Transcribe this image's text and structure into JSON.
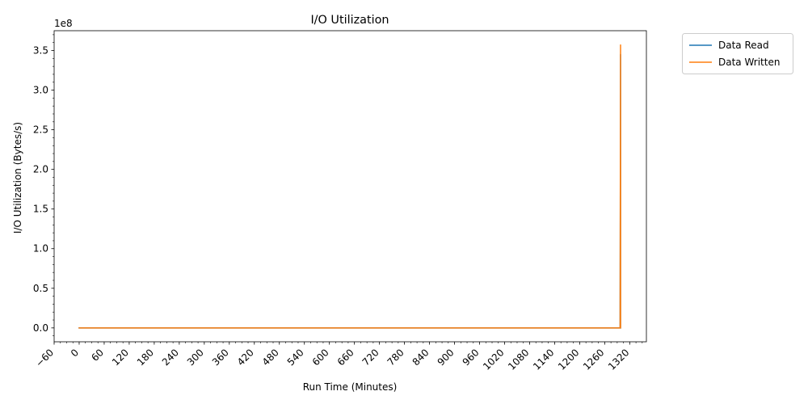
{
  "chart_data": {
    "type": "line",
    "title": "I/O Utilization",
    "xlabel": "Run Time (Minutes)",
    "ylabel": "I/O Utilization (Bytes/s)",
    "y_offset_label": "1e8",
    "xlim": [
      -60,
      1360
    ],
    "ylim": [
      -17500000,
      375000000
    ],
    "x_ticks": [
      -60,
      0,
      60,
      120,
      180,
      240,
      300,
      360,
      420,
      480,
      540,
      600,
      660,
      720,
      780,
      840,
      900,
      960,
      1020,
      1080,
      1140,
      1200,
      1260,
      1320
    ],
    "x_tick_labels": [
      "−60",
      "0",
      "60",
      "120",
      "180",
      "240",
      "300",
      "360",
      "420",
      "480",
      "540",
      "600",
      "660",
      "720",
      "780",
      "840",
      "900",
      "960",
      "1020",
      "1080",
      "1140",
      "1200",
      "1260",
      "1320"
    ],
    "y_ticks": [
      0,
      50000000,
      100000000,
      150000000,
      200000000,
      250000000,
      300000000,
      350000000
    ],
    "y_tick_labels": [
      "0.0",
      "0.5",
      "1.0",
      "1.5",
      "2.0",
      "2.5",
      "3.0",
      "3.5"
    ],
    "grid": false,
    "legend_position": "outside-top-right",
    "series": [
      {
        "name": "Data Read",
        "color": "#1f77b4",
        "x": [
          0,
          300,
          600,
          900,
          1200,
          1296,
          1297,
          1298,
          1298
        ],
        "y": [
          0,
          0,
          0,
          0,
          0,
          0,
          0,
          345000000,
          0
        ]
      },
      {
        "name": "Data Written",
        "color": "#ff7f0e",
        "x": [
          0,
          300,
          600,
          900,
          1200,
          1296,
          1297,
          1298,
          1298
        ],
        "y": [
          0,
          0,
          0,
          0,
          0,
          0,
          0,
          357000000,
          0
        ]
      }
    ]
  }
}
